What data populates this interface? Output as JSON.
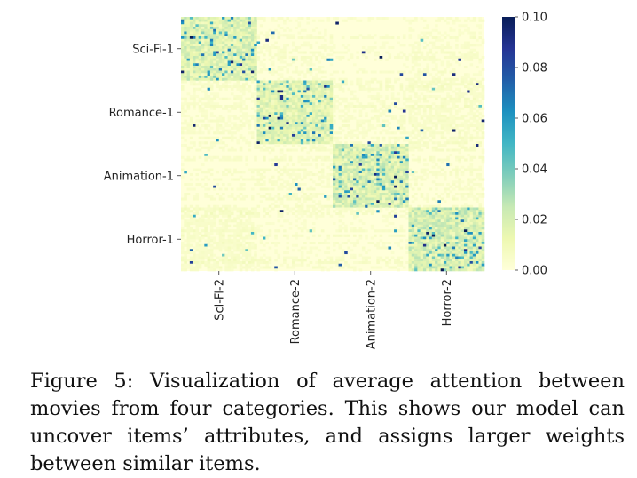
{
  "chart_data": {
    "type": "heatmap",
    "row_labels": [
      "Sci-Fi-1",
      "Romance-1",
      "Animation-1",
      "Horror-1"
    ],
    "col_labels": [
      "Sci-Fi-2",
      "Romance-2",
      "Animation-2",
      "Horror-2"
    ],
    "colorbar_ticks": [
      "0.00",
      "0.02",
      "0.04",
      "0.06",
      "0.08",
      "0.10"
    ],
    "value_range": [
      0.0,
      0.1
    ],
    "colormap": [
      "#ffffd9",
      "#edf8b1",
      "#c7e9b4",
      "#7fcdbb",
      "#41b6c4",
      "#1d91c0",
      "#225ea8",
      "#253494",
      "#081d58"
    ],
    "block_mean_attention": [
      [
        0.02,
        0.003,
        0.002,
        0.003
      ],
      [
        0.003,
        0.018,
        0.003,
        0.004
      ],
      [
        0.002,
        0.003,
        0.022,
        0.003
      ],
      [
        0.005,
        0.003,
        0.003,
        0.023
      ]
    ]
  },
  "caption": "Figure 5: Visualization of average attention between movies from four categories. This shows our model can uncover items’ attributes, and assigns larger weights between similar items."
}
